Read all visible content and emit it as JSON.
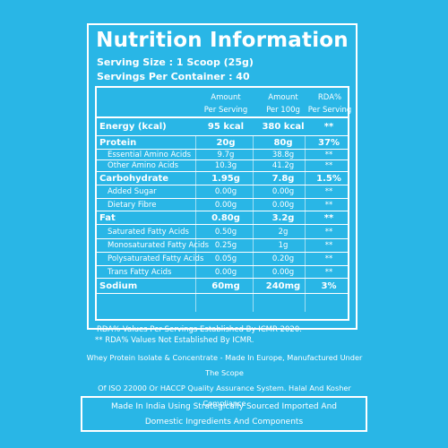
{
  "title": "Nutrition Information",
  "serving_size": "Serving Size : 1 Scoop (25g)",
  "servings_per_container": "Servings Per Container : 40",
  "headers": {
    "col1_line1": "Amount",
    "col1_line2": "Per Serving",
    "col2_line1": "Amount",
    "col2_line2": "Per 100g",
    "col3_line1": "RDA%",
    "col3_line2": "Per Serving"
  },
  "rows": [
    {
      "label": "Energy (kcal)",
      "serving": "95 kcal",
      "per100": "380 kcal",
      "rda": "**"
    },
    {
      "label": "Protein",
      "serving": "20g",
      "per100": "80g",
      "rda": "37%"
    },
    {
      "label": "Essential Amino Acids",
      "serving": "9.7g",
      "per100": "38.8g",
      "rda": "**"
    },
    {
      "label": "Other Amino Acids",
      "serving": "10.3g",
      "per100": "41.2g",
      "rda": "**"
    },
    {
      "label": "Carbohydrate",
      "serving": "1.95g",
      "per100": "7.8g",
      "rda": "1.5%"
    },
    {
      "label": "Added Sugar",
      "serving": "0.00g",
      "per100": "0.00g",
      "rda": "**"
    },
    {
      "label": "Dietary Fibre",
      "serving": "0.00g",
      "per100": "0.00g",
      "rda": "**"
    },
    {
      "label": "Fat",
      "serving": "0.80g",
      "per100": "3.2g",
      "rda": "**"
    },
    {
      "label": "Saturated Fatty Acids",
      "serving": "0.50g",
      "per100": "2g",
      "rda": "**"
    },
    {
      "label": "Monosaturated Fatty Acids",
      "serving": "0.25g",
      "per100": "1g",
      "rda": "**"
    },
    {
      "label": "Polysaturated Fatty Acids",
      "serving": "0.05g",
      "per100": "0.20g",
      "rda": "**"
    },
    {
      "label": "Trans Fatty Acids",
      "serving": "0.00g",
      "per100": "0.00g",
      "rda": "**"
    },
    {
      "label": "Sodium",
      "serving": "60mg",
      "per100": "240mg",
      "rda": "3%"
    }
  ],
  "note1": "RDA%  Values Per Servings Established By ICMR 2020.",
  "note2": "** RDA%  Values Not Established By ICMR.",
  "bottom_line1": "Whey Protein Isolate & Concentrate - Made In Europe, Manufactured Under The Scope",
  "bottom_line2": "Of ISO 22000 Or HACCP Quality Assurance System. Halal And Kosher Compliance",
  "made_line1": "Made In India Using Strategically Sourced Imported And",
  "made_line2": "Domestic Ingredients And Components",
  "colors": {
    "background": "#29b6e6",
    "text": "#ffffff"
  }
}
